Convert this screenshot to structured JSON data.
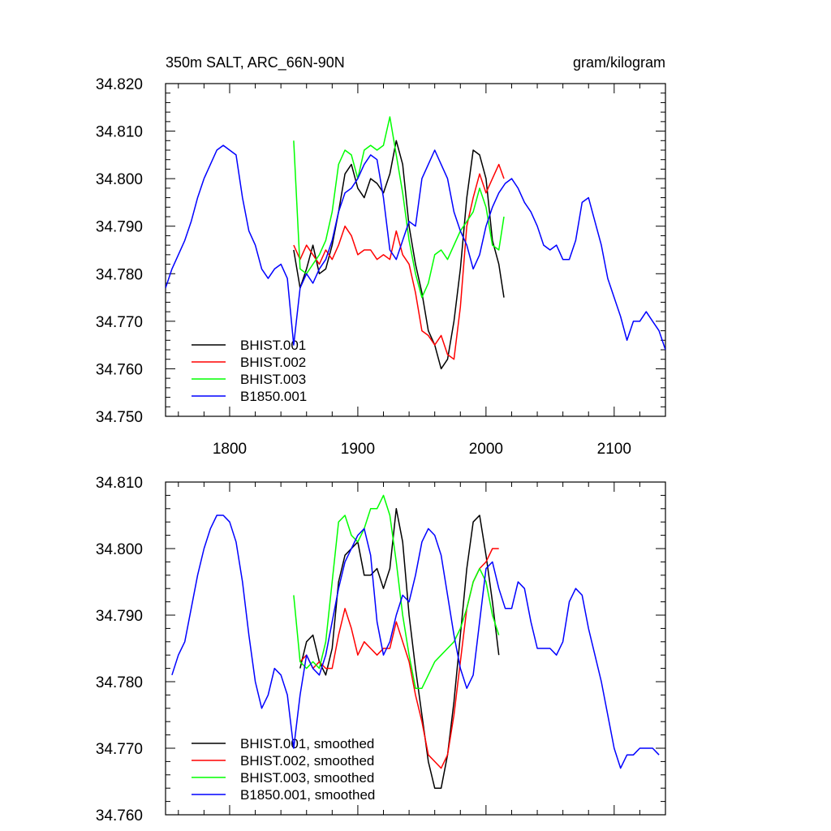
{
  "chart_data": [
    {
      "type": "line",
      "title": "350m SALT, ARC_66N-90N",
      "units": "gram/kilogram",
      "xlim": [
        1750,
        2140
      ],
      "ylim": [
        34.75,
        34.82
      ],
      "x_ticks": [
        1800,
        1900,
        2000,
        2100
      ],
      "y_ticks": [
        34.75,
        34.76,
        34.77,
        34.78,
        34.79,
        34.8,
        34.81,
        34.82
      ],
      "x_tick_labels": [
        "1800",
        "1900",
        "2000",
        "2100"
      ],
      "y_tick_labels": [
        "34.750",
        "34.760",
        "34.770",
        "34.780",
        "34.790",
        "34.800",
        "34.810",
        "34.820"
      ],
      "grid": false,
      "legend_position": "bottom-left",
      "series": [
        {
          "name": "BHIST.001",
          "color": "#000000",
          "x": [
            1850,
            1855,
            1860,
            1865,
            1870,
            1875,
            1880,
            1885,
            1890,
            1895,
            1900,
            1905,
            1910,
            1915,
            1920,
            1925,
            1930,
            1935,
            1940,
            1945,
            1950,
            1955,
            1960,
            1965,
            1970,
            1975,
            1980,
            1985,
            1990,
            1995,
            2000,
            2005,
            2010,
            2014
          ],
          "values": [
            34.785,
            34.777,
            34.781,
            34.786,
            34.78,
            34.781,
            34.786,
            34.793,
            34.801,
            34.803,
            34.798,
            34.796,
            34.8,
            34.799,
            34.797,
            34.801,
            34.808,
            34.803,
            34.79,
            34.782,
            34.776,
            34.768,
            34.765,
            34.76,
            34.762,
            34.77,
            34.781,
            34.796,
            34.806,
            34.805,
            34.8,
            34.787,
            34.782,
            34.775
          ]
        },
        {
          "name": "BHIST.002",
          "color": "#ff0000",
          "x": [
            1850,
            1855,
            1860,
            1865,
            1870,
            1875,
            1880,
            1885,
            1890,
            1895,
            1900,
            1905,
            1910,
            1915,
            1920,
            1925,
            1930,
            1935,
            1940,
            1945,
            1950,
            1955,
            1960,
            1965,
            1970,
            1975,
            1980,
            1985,
            1990,
            1995,
            2000,
            2005,
            2010,
            2014
          ],
          "values": [
            34.786,
            34.783,
            34.786,
            34.784,
            34.782,
            34.785,
            34.783,
            34.786,
            34.79,
            34.788,
            34.784,
            34.785,
            34.785,
            34.783,
            34.784,
            34.783,
            34.789,
            34.784,
            34.782,
            34.776,
            34.768,
            34.767,
            34.765,
            34.767,
            34.763,
            34.762,
            34.773,
            34.79,
            34.796,
            34.801,
            34.797,
            34.8,
            34.803,
            34.8
          ]
        },
        {
          "name": "BHIST.003",
          "color": "#00ff00",
          "x": [
            1850,
            1855,
            1860,
            1865,
            1870,
            1875,
            1880,
            1885,
            1890,
            1895,
            1900,
            1905,
            1910,
            1915,
            1920,
            1925,
            1930,
            1935,
            1940,
            1945,
            1950,
            1955,
            1960,
            1965,
            1970,
            1975,
            1980,
            1985,
            1990,
            1995,
            2000,
            2005,
            2010,
            2014
          ],
          "values": [
            34.808,
            34.781,
            34.78,
            34.782,
            34.784,
            34.787,
            34.793,
            34.803,
            34.806,
            34.805,
            34.8,
            34.806,
            34.807,
            34.806,
            34.807,
            34.813,
            34.805,
            34.797,
            34.787,
            34.78,
            34.775,
            34.778,
            34.784,
            34.785,
            34.783,
            34.786,
            34.789,
            34.791,
            34.793,
            34.798,
            34.794,
            34.786,
            34.785,
            34.792
          ]
        },
        {
          "name": "B1850.001",
          "color": "#0000ff",
          "x": [
            1750,
            1755,
            1760,
            1765,
            1770,
            1775,
            1780,
            1785,
            1790,
            1795,
            1800,
            1805,
            1810,
            1815,
            1820,
            1825,
            1830,
            1835,
            1840,
            1845,
            1850,
            1855,
            1860,
            1865,
            1870,
            1875,
            1880,
            1885,
            1890,
            1895,
            1900,
            1905,
            1910,
            1915,
            1920,
            1925,
            1930,
            1935,
            1940,
            1945,
            1950,
            1955,
            1960,
            1965,
            1970,
            1975,
            1980,
            1985,
            1990,
            1995,
            2000,
            2005,
            2010,
            2015,
            2020,
            2025,
            2030,
            2035,
            2040,
            2045,
            2050,
            2055,
            2060,
            2065,
            2070,
            2075,
            2080,
            2085,
            2090,
            2095,
            2100,
            2105,
            2110,
            2115,
            2120,
            2125,
            2130,
            2135,
            2140
          ],
          "values": [
            34.777,
            34.781,
            34.784,
            34.787,
            34.791,
            34.796,
            34.8,
            34.803,
            34.806,
            34.807,
            34.806,
            34.805,
            34.796,
            34.789,
            34.786,
            34.781,
            34.779,
            34.781,
            34.782,
            34.779,
            34.765,
            34.777,
            34.78,
            34.778,
            34.781,
            34.783,
            34.787,
            34.793,
            34.797,
            34.798,
            34.8,
            34.803,
            34.805,
            34.804,
            34.796,
            34.785,
            34.783,
            34.787,
            34.791,
            34.79,
            34.8,
            34.803,
            34.806,
            34.803,
            34.8,
            34.793,
            34.789,
            34.786,
            34.781,
            34.784,
            34.79,
            34.794,
            34.797,
            34.799,
            34.8,
            34.798,
            34.795,
            34.793,
            34.79,
            34.786,
            34.785,
            34.786,
            34.783,
            34.783,
            34.787,
            34.795,
            34.796,
            34.791,
            34.786,
            34.779,
            34.775,
            34.771,
            34.766,
            34.77,
            34.77,
            34.772,
            34.77,
            34.768,
            34.764
          ]
        }
      ]
    },
    {
      "type": "line",
      "xlim": [
        1750,
        2140
      ],
      "ylim": [
        34.76,
        34.81
      ],
      "x_ticks": [
        1800,
        1900,
        2000,
        2100
      ],
      "y_ticks": [
        34.76,
        34.77,
        34.78,
        34.79,
        34.8,
        34.81
      ],
      "y_tick_labels": [
        "34.760",
        "34.770",
        "34.780",
        "34.790",
        "34.800",
        "34.810"
      ],
      "grid": false,
      "legend_position": "bottom-left",
      "series": [
        {
          "name": "BHIST.001, smoothed",
          "color": "#000000",
          "x": [
            1855,
            1860,
            1865,
            1870,
            1875,
            1880,
            1885,
            1890,
            1895,
            1900,
            1905,
            1910,
            1915,
            1920,
            1925,
            1930,
            1935,
            1940,
            1945,
            1950,
            1955,
            1960,
            1965,
            1970,
            1975,
            1980,
            1985,
            1990,
            1995,
            2000,
            2005,
            2010
          ],
          "values": [
            34.782,
            34.786,
            34.787,
            34.783,
            34.781,
            34.785,
            34.795,
            34.799,
            34.8,
            34.801,
            34.796,
            34.796,
            34.797,
            34.794,
            34.797,
            34.806,
            34.801,
            34.79,
            34.782,
            34.775,
            34.768,
            34.764,
            34.764,
            34.769,
            34.777,
            34.787,
            34.797,
            34.804,
            34.805,
            34.799,
            34.792,
            34.784
          ]
        },
        {
          "name": "BHIST.002, smoothed",
          "color": "#ff0000",
          "x": [
            1855,
            1860,
            1865,
            1870,
            1875,
            1880,
            1885,
            1890,
            1895,
            1900,
            1905,
            1910,
            1915,
            1920,
            1925,
            1930,
            1935,
            1940,
            1945,
            1950,
            1955,
            1960,
            1965,
            1970,
            1975,
            1980,
            1985,
            1990,
            1995,
            2000,
            2005,
            2010
          ],
          "values": [
            34.783,
            34.784,
            34.782,
            34.783,
            34.782,
            34.782,
            34.787,
            34.791,
            34.788,
            34.784,
            34.786,
            34.785,
            34.784,
            34.785,
            34.785,
            34.789,
            34.786,
            34.783,
            34.778,
            34.774,
            34.769,
            34.768,
            34.767,
            34.769,
            34.775,
            34.783,
            34.791,
            34.795,
            34.797,
            34.798,
            34.8,
            34.8
          ]
        },
        {
          "name": "BHIST.003, smoothed",
          "color": "#00ff00",
          "x": [
            1850,
            1855,
            1860,
            1865,
            1870,
            1875,
            1880,
            1885,
            1890,
            1895,
            1900,
            1905,
            1910,
            1915,
            1920,
            1925,
            1930,
            1935,
            1940,
            1945,
            1950,
            1955,
            1960,
            1965,
            1970,
            1975,
            1980,
            1985,
            1990,
            1995,
            2000,
            2005,
            2010
          ],
          "values": [
            34.793,
            34.783,
            34.782,
            34.783,
            34.782,
            34.786,
            34.795,
            34.804,
            34.805,
            34.802,
            34.801,
            34.803,
            34.806,
            34.806,
            34.808,
            34.805,
            34.798,
            34.79,
            34.784,
            34.779,
            34.779,
            34.781,
            34.783,
            34.784,
            34.785,
            34.786,
            34.788,
            34.791,
            34.795,
            34.797,
            34.795,
            34.79,
            34.787
          ]
        },
        {
          "name": "B1850.001, smoothed",
          "color": "#0000ff",
          "x": [
            1755,
            1760,
            1765,
            1770,
            1775,
            1780,
            1785,
            1790,
            1795,
            1800,
            1805,
            1810,
            1815,
            1820,
            1825,
            1830,
            1835,
            1840,
            1845,
            1850,
            1855,
            1860,
            1865,
            1870,
            1875,
            1880,
            1885,
            1890,
            1895,
            1900,
            1905,
            1910,
            1915,
            1920,
            1925,
            1930,
            1935,
            1940,
            1945,
            1950,
            1955,
            1960,
            1965,
            1970,
            1975,
            1980,
            1985,
            1990,
            1995,
            2000,
            2005,
            2010,
            2015,
            2020,
            2025,
            2030,
            2035,
            2040,
            2045,
            2050,
            2055,
            2060,
            2065,
            2070,
            2075,
            2080,
            2085,
            2090,
            2095,
            2100,
            2105,
            2110,
            2115,
            2120,
            2125,
            2130,
            2135
          ],
          "values": [
            34.781,
            34.784,
            34.786,
            34.791,
            34.796,
            34.8,
            34.803,
            34.805,
            34.805,
            34.804,
            34.801,
            34.795,
            34.787,
            34.78,
            34.776,
            34.778,
            34.782,
            34.781,
            34.778,
            34.77,
            34.778,
            34.784,
            34.782,
            34.781,
            34.784,
            34.789,
            34.794,
            34.798,
            34.8,
            34.802,
            34.803,
            34.799,
            34.789,
            34.784,
            34.786,
            34.79,
            34.793,
            34.792,
            34.796,
            34.801,
            34.803,
            34.802,
            34.799,
            34.793,
            34.787,
            34.782,
            34.779,
            34.781,
            34.789,
            34.797,
            34.798,
            34.794,
            34.791,
            34.791,
            34.795,
            34.794,
            34.789,
            34.785,
            34.785,
            34.785,
            34.784,
            34.786,
            34.792,
            34.794,
            34.793,
            34.788,
            34.784,
            34.78,
            34.775,
            34.77,
            34.767,
            34.769,
            34.769,
            34.77,
            34.77,
            34.77,
            34.769
          ]
        }
      ]
    }
  ]
}
